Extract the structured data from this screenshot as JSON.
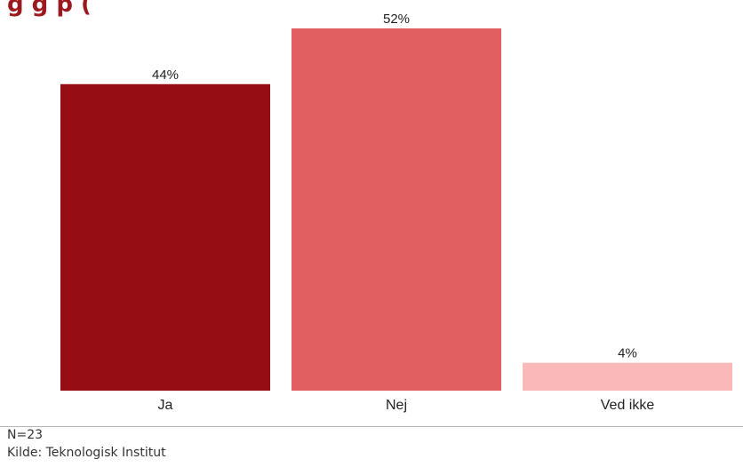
{
  "title_fragment": "g                                                                                  g    p    (",
  "footer": {
    "n_text": "N=23",
    "source_text": "Kilde: Teknologisk Institut"
  },
  "chart_data": {
    "type": "bar",
    "categories": [
      "Ja",
      "Nej",
      "Ved ikke"
    ],
    "values": [
      44,
      52,
      4
    ],
    "value_labels": [
      "44%",
      "52%",
      "4%"
    ],
    "colors": [
      "#970d14",
      "#e15f60",
      "#fbb8b8"
    ],
    "ylim": [
      0,
      52
    ],
    "grid": false,
    "legend": "none"
  }
}
